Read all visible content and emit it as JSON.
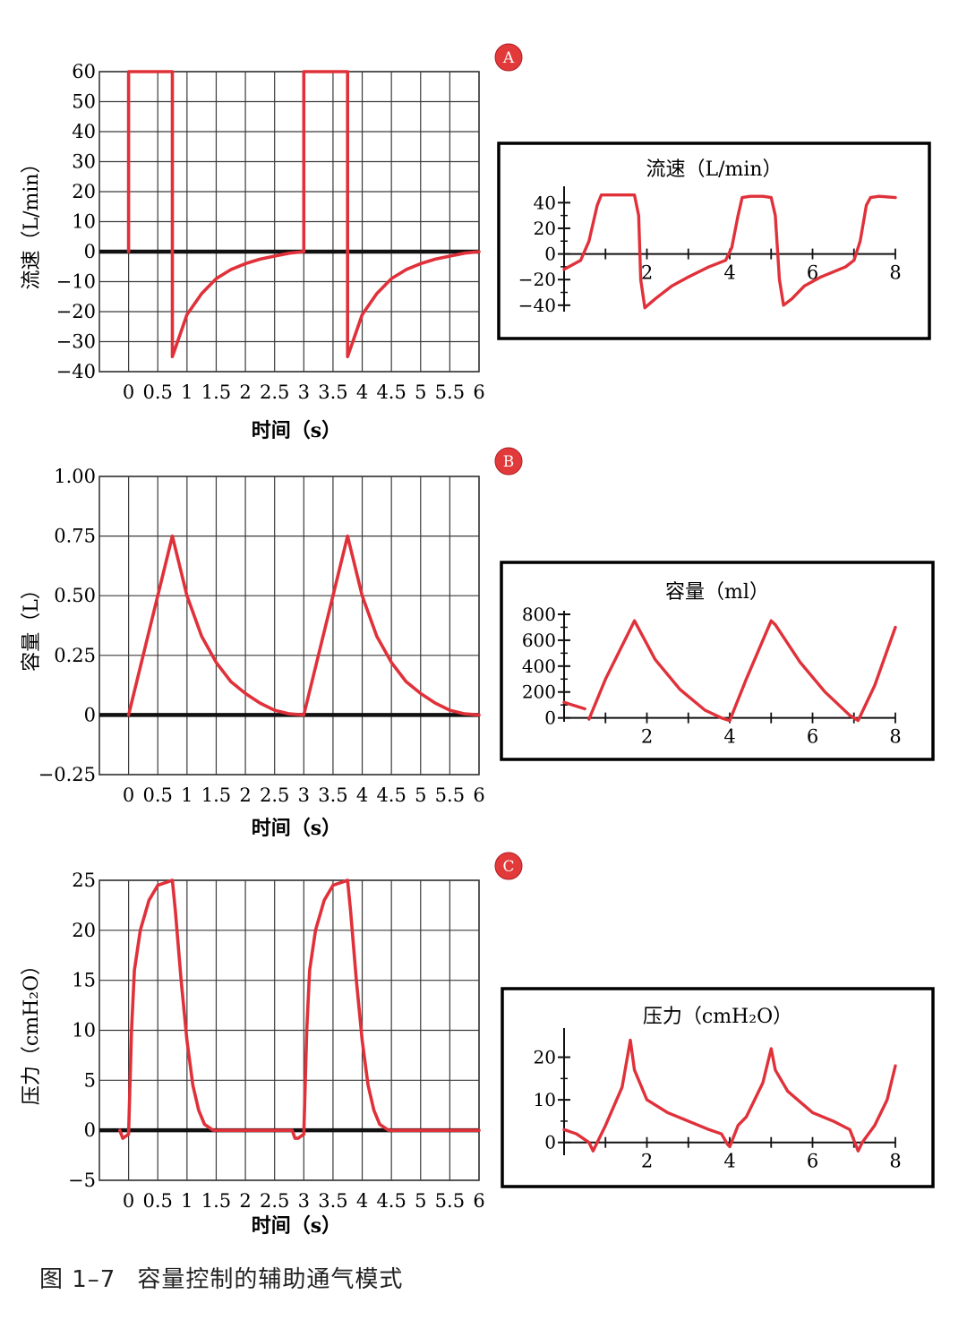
{
  "figure": {
    "caption_number": "图 1–7",
    "caption_title": "容量控制的辅助通气模式"
  },
  "colors": {
    "trace": "#e0313a",
    "grid": "#3a3a3a",
    "axis": "#111111",
    "badge": "#e23a3a"
  },
  "chart_data": [
    {
      "id": "A-main",
      "badge": "A",
      "type": "line",
      "ylabel": "流速（L/min）",
      "xlabel": "时间（s）",
      "xlim": [
        -0.5,
        6
      ],
      "ylim": [
        -40,
        60
      ],
      "xticks": [
        0,
        0.5,
        1,
        1.5,
        2,
        2.5,
        3,
        3.5,
        4,
        4.5,
        5,
        5.5,
        6
      ],
      "xtick_labels": [
        "0",
        "0.5",
        "1",
        "1.5",
        "2",
        "2.5",
        "3",
        "3.5",
        "4",
        "4.5",
        "5",
        "5.5",
        "6"
      ],
      "yticks": [
        -40,
        -30,
        -20,
        -10,
        0,
        10,
        20,
        30,
        40,
        50,
        60
      ],
      "ytick_labels": [
        "−40",
        "−30",
        "−20",
        "−10",
        "0",
        "10",
        "20",
        "30",
        "40",
        "50",
        "60"
      ],
      "baseline": 0,
      "series": [
        {
          "name": "flow",
          "x": [
            0,
            0,
            0.75,
            0.75,
            1.0,
            1.25,
            1.5,
            1.75,
            2.0,
            2.25,
            2.5,
            2.75,
            3.0,
            3.0,
            3.75,
            3.75,
            4.0,
            4.25,
            4.5,
            4.75,
            5.0,
            5.25,
            5.5,
            5.75,
            6.0
          ],
          "y": [
            0,
            60,
            60,
            -35,
            -21,
            -14,
            -9,
            -6,
            -4,
            -2.5,
            -1.5,
            -0.5,
            0,
            60,
            60,
            -35,
            -21,
            -14,
            -9,
            -6,
            -4,
            -2.5,
            -1.5,
            -0.5,
            0
          ]
        }
      ]
    },
    {
      "id": "A-inset",
      "type": "line",
      "title": "流速（L/min）",
      "xlim": [
        0,
        8
      ],
      "ylim": [
        -45,
        50
      ],
      "xticks": [
        2,
        4,
        6,
        8
      ],
      "xtick_labels": [
        "2",
        "4",
        "6",
        "8"
      ],
      "yticks": [
        -40,
        -20,
        0,
        20,
        40
      ],
      "ytick_labels": [
        "−40",
        "−20",
        "0",
        "20",
        "40"
      ],
      "series": [
        {
          "name": "flow",
          "x": [
            0,
            0.4,
            0.6,
            0.8,
            0.9,
            1.0,
            1.7,
            1.8,
            1.85,
            1.95,
            2.2,
            2.6,
            3.0,
            3.5,
            3.9,
            4.05,
            4.2,
            4.3,
            4.5,
            4.8,
            5.0,
            5.1,
            5.2,
            5.3,
            5.5,
            5.8,
            6.2,
            6.8,
            7.0,
            7.15,
            7.3,
            7.4,
            7.6,
            8.0
          ],
          "y": [
            -12,
            -5,
            10,
            38,
            46,
            46,
            46,
            30,
            -20,
            -42,
            -35,
            -25,
            -18,
            -10,
            -5,
            5,
            30,
            44,
            45,
            45,
            44,
            30,
            -20,
            -40,
            -35,
            -25,
            -18,
            -10,
            -5,
            10,
            38,
            44,
            45,
            44
          ]
        }
      ]
    },
    {
      "id": "B-main",
      "badge": "B",
      "type": "line",
      "ylabel": "容量（L）",
      "xlabel": "时间（s）",
      "xlim": [
        -0.5,
        6
      ],
      "ylim": [
        -0.25,
        1.0
      ],
      "xticks": [
        0,
        0.5,
        1,
        1.5,
        2,
        2.5,
        3,
        3.5,
        4,
        4.5,
        5,
        5.5,
        6
      ],
      "xtick_labels": [
        "0",
        "0.5",
        "1",
        "1.5",
        "2",
        "2.5",
        "3",
        "3.5",
        "4",
        "4.5",
        "5",
        "5.5",
        "6"
      ],
      "yticks": [
        -0.25,
        0,
        0.25,
        0.5,
        0.75,
        1.0
      ],
      "ytick_labels": [
        "−0.25",
        "0",
        "0.25",
        "0.50",
        "0.75",
        "1.00"
      ],
      "baseline": 0,
      "series": [
        {
          "name": "volume",
          "x": [
            0,
            0.75,
            1.0,
            1.25,
            1.5,
            1.75,
            2.0,
            2.25,
            2.5,
            2.75,
            3.0,
            3.75,
            4.0,
            4.25,
            4.5,
            4.75,
            5.0,
            5.25,
            5.5,
            5.75,
            6.0
          ],
          "y": [
            0,
            0.75,
            0.5,
            0.33,
            0.22,
            0.14,
            0.09,
            0.05,
            0.02,
            0.005,
            0,
            0.75,
            0.5,
            0.33,
            0.22,
            0.14,
            0.09,
            0.05,
            0.02,
            0.005,
            0
          ]
        }
      ]
    },
    {
      "id": "B-inset",
      "type": "line",
      "title": "容量（ml）",
      "xlim": [
        0,
        8
      ],
      "ylim": [
        -30,
        800
      ],
      "xticks": [
        2,
        4,
        6,
        8
      ],
      "xtick_labels": [
        "2",
        "4",
        "6",
        "8"
      ],
      "yticks": [
        0,
        200,
        400,
        600,
        800
      ],
      "ytick_labels": [
        "0",
        "200",
        "400",
        "600",
        "800"
      ],
      "series": [
        {
          "name": "volume-start",
          "x": [
            0,
            0.5
          ],
          "y": [
            120,
            70
          ]
        },
        {
          "name": "volume",
          "x": [
            0.6,
            1.0,
            1.7,
            2.2,
            2.8,
            3.4,
            3.8,
            4.0,
            4.4,
            5.0,
            5.1,
            5.7,
            6.3,
            6.9,
            7.1,
            7.5,
            8.0
          ],
          "y": [
            -10,
            300,
            750,
            450,
            220,
            60,
            0,
            -20,
            300,
            750,
            720,
            430,
            200,
            20,
            -20,
            250,
            700
          ]
        }
      ]
    },
    {
      "id": "C-main",
      "badge": "C",
      "type": "line",
      "ylabel": "压力（cmH₂O）",
      "xlabel": "时间（s）",
      "xlim": [
        -0.5,
        6
      ],
      "ylim": [
        -5,
        25
      ],
      "xticks": [
        0,
        0.5,
        1,
        1.5,
        2,
        2.5,
        3,
        3.5,
        4,
        4.5,
        5,
        5.5,
        6
      ],
      "xtick_labels": [
        "0",
        "0.5",
        "1",
        "1.5",
        "2",
        "2.5",
        "3",
        "3.5",
        "4",
        "4.5",
        "5",
        "5.5",
        "6"
      ],
      "yticks": [
        -5,
        0,
        5,
        10,
        15,
        20,
        25
      ],
      "ytick_labels": [
        "−5",
        "0",
        "5",
        "10",
        "15",
        "20",
        "25"
      ],
      "baseline": 0,
      "series": [
        {
          "name": "pressure",
          "x": [
            -0.15,
            -0.1,
            0,
            0.05,
            0.1,
            0.2,
            0.35,
            0.5,
            0.75,
            0.8,
            0.9,
            1.0,
            1.1,
            1.2,
            1.3,
            1.45,
            2.8,
            2.85,
            2.9,
            3.0,
            3.05,
            3.1,
            3.2,
            3.35,
            3.5,
            3.75,
            3.8,
            3.9,
            4.0,
            4.1,
            4.2,
            4.3,
            4.45,
            6.0
          ],
          "y": [
            0,
            -0.8,
            -0.4,
            10,
            16,
            20,
            23,
            24.5,
            25,
            22,
            15,
            9,
            4.5,
            2,
            0.6,
            0,
            0,
            -0.8,
            -0.8,
            -0.4,
            10,
            16,
            20,
            23,
            24.5,
            25,
            22,
            15,
            9,
            4.5,
            2,
            0.6,
            0,
            0
          ]
        }
      ]
    },
    {
      "id": "C-inset",
      "type": "line",
      "title": "压力（cmH₂O）",
      "xlim": [
        0,
        8
      ],
      "ylim": [
        -3,
        26
      ],
      "xticks": [
        2,
        4,
        6,
        8
      ],
      "xtick_labels": [
        "2",
        "4",
        "6",
        "8"
      ],
      "yticks": [
        0,
        10,
        20
      ],
      "ytick_labels": [
        "0",
        "10",
        "20"
      ],
      "series": [
        {
          "name": "pressure",
          "x": [
            0,
            0.3,
            0.6,
            0.7,
            1.0,
            1.4,
            1.6,
            1.7,
            2.0,
            2.5,
            3.0,
            3.5,
            3.8,
            3.95,
            4.0,
            4.2,
            4.4,
            4.8,
            5.0,
            5.1,
            5.4,
            6.0,
            6.5,
            6.9,
            7.1,
            7.2,
            7.5,
            7.8,
            8.0
          ],
          "y": [
            3,
            2,
            0,
            -2,
            4,
            13,
            24,
            17,
            10,
            7,
            5,
            3,
            2,
            -0.5,
            -1,
            4,
            6,
            14,
            22,
            17,
            12,
            7,
            5,
            3,
            -2,
            0,
            4,
            10,
            18
          ]
        }
      ]
    }
  ]
}
